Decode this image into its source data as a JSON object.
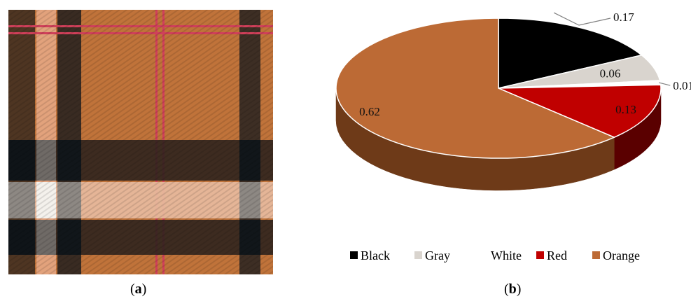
{
  "captions": {
    "a_open": "(",
    "a_letter": "a",
    "a_close": ")",
    "b_open": "(",
    "b_letter": "b",
    "b_close": ")"
  },
  "fabric": {
    "base_color": "#c0733a",
    "dark_color": "#1b1b1b",
    "light_color": "#e8b9a0",
    "white_color": "#f4f1ec",
    "red_color": "#d0405a"
  },
  "chart_data": {
    "type": "pie",
    "title": "",
    "categories": [
      "Black",
      "Gray",
      "White",
      "Red",
      "Orange"
    ],
    "values": [
      0.17,
      0.06,
      0.01,
      0.13,
      0.62
    ],
    "labels": [
      "0.17",
      "0.06",
      "0.01",
      "0.13",
      "0.62"
    ],
    "colors": [
      "#000000",
      "#d9d4ce",
      "#ffffff",
      "#c00000",
      "#bc6a35"
    ],
    "side_colors": [
      "#000000",
      "#9d9892",
      "#d8d8d8",
      "#5a0000",
      "#6e3a18"
    ],
    "legend_position": "bottom",
    "three_d": true
  }
}
